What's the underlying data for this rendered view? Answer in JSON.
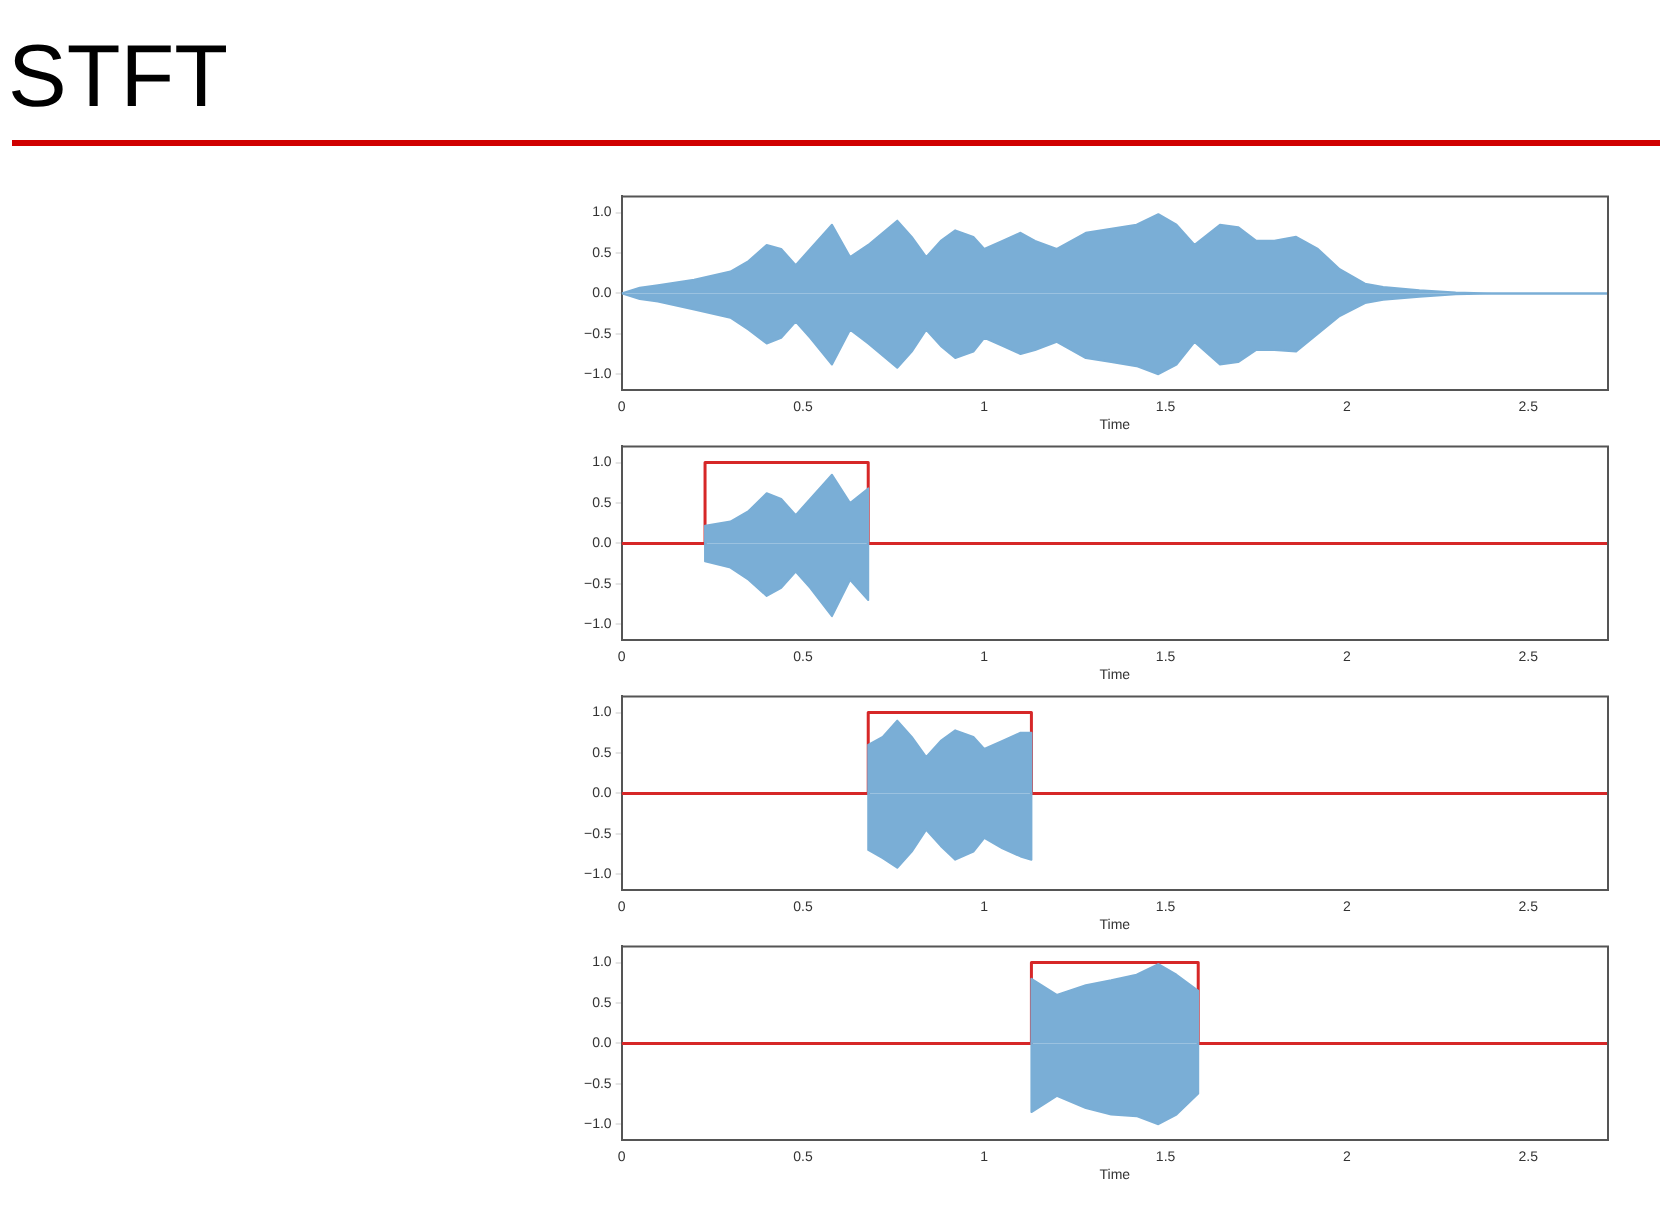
{
  "chart_data": [
    {
      "type": "area",
      "title": "STFT",
      "xlabel": "Time",
      "xlim": [
        0,
        2.72
      ],
      "xticks": [
        0,
        0.5,
        1,
        1.5,
        2,
        2.5
      ],
      "ylim": [
        -1.2,
        1.2
      ],
      "yticks": [
        {
          "value": -1,
          "label": "−1.0"
        },
        {
          "value": -0.5,
          "label": "−0.5"
        },
        {
          "value": 0,
          "label": "0.0"
        },
        {
          "value": 0.5,
          "label": "0.5"
        },
        {
          "value": 1,
          "label": "1.0"
        }
      ],
      "grid": false,
      "legend": false,
      "series": [
        {
          "type": "area",
          "color": "#7aaed6",
          "x": [
            0,
            0.05,
            0.1,
            0.2,
            0.3,
            0.35,
            0.4,
            0.44,
            0.48,
            0.52,
            0.58,
            0.63,
            0.68,
            0.76,
            0.8,
            0.84,
            0.88,
            0.92,
            0.97,
            1.0,
            1.05,
            1.1,
            1.14,
            1.2,
            1.28,
            1.35,
            1.42,
            1.48,
            1.53,
            1.58,
            1.65,
            1.7,
            1.75,
            1.8,
            1.86,
            1.92,
            1.98,
            2.05,
            2.1,
            2.2,
            2.3,
            2.4,
            2.72
          ],
          "values": [
            0,
            0.07,
            0.1,
            0.17,
            0.27,
            0.4,
            0.6,
            0.55,
            0.35,
            0.55,
            0.85,
            0.45,
            0.6,
            0.9,
            0.7,
            0.45,
            0.65,
            0.78,
            0.7,
            0.55,
            0.65,
            0.75,
            0.65,
            0.55,
            0.75,
            0.8,
            0.85,
            0.98,
            0.85,
            0.6,
            0.85,
            0.82,
            0.65,
            0.65,
            0.7,
            0.55,
            0.3,
            0.12,
            0.08,
            0.04,
            0.01,
            0,
            0
          ]
        },
        {
          "type": "area",
          "color": "#7aaed6",
          "x": [
            0,
            0.05,
            0.1,
            0.2,
            0.3,
            0.35,
            0.4,
            0.44,
            0.48,
            0.52,
            0.58,
            0.63,
            0.68,
            0.76,
            0.8,
            0.84,
            0.88,
            0.92,
            0.97,
            1.0,
            1.05,
            1.1,
            1.14,
            1.2,
            1.28,
            1.35,
            1.42,
            1.48,
            1.53,
            1.58,
            1.65,
            1.7,
            1.75,
            1.8,
            1.86,
            1.92,
            1.98,
            2.05,
            2.1,
            2.2,
            2.3,
            2.4,
            2.72
          ],
          "values": [
            0,
            -0.07,
            -0.1,
            -0.2,
            -0.3,
            -0.45,
            -0.62,
            -0.55,
            -0.35,
            -0.55,
            -0.88,
            -0.45,
            -0.62,
            -0.92,
            -0.72,
            -0.45,
            -0.65,
            -0.8,
            -0.72,
            -0.55,
            -0.65,
            -0.75,
            -0.7,
            -0.6,
            -0.8,
            -0.85,
            -0.9,
            -1.0,
            -0.88,
            -0.6,
            -0.88,
            -0.85,
            -0.7,
            -0.7,
            -0.72,
            -0.5,
            -0.28,
            -0.12,
            -0.08,
            -0.04,
            -0.01,
            0,
            0
          ]
        }
      ]
    },
    {
      "type": "area",
      "xlabel": "Time",
      "xlim": [
        0,
        2.72
      ],
      "xticks": [
        0,
        0.5,
        1,
        1.5,
        2,
        2.5
      ],
      "ylim": [
        -1.2,
        1.2
      ],
      "yticks": [
        {
          "value": -1,
          "label": "−1.0"
        },
        {
          "value": -0.5,
          "label": "−0.5"
        },
        {
          "value": 0,
          "label": "0.0"
        },
        {
          "value": 0.5,
          "label": "0.5"
        },
        {
          "value": 1,
          "label": "1.0"
        }
      ],
      "grid": false,
      "legend": false,
      "series": [
        {
          "type": "area",
          "color": "#7aaed6",
          "x": [
            0.23,
            0.23,
            0.3,
            0.35,
            0.4,
            0.44,
            0.48,
            0.52,
            0.58,
            0.63,
            0.68,
            0.68
          ],
          "values": [
            0,
            0.22,
            0.27,
            0.4,
            0.62,
            0.55,
            0.35,
            0.55,
            0.85,
            0.5,
            0.68,
            0
          ]
        },
        {
          "type": "area",
          "color": "#7aaed6",
          "x": [
            0.23,
            0.23,
            0.3,
            0.35,
            0.4,
            0.44,
            0.48,
            0.52,
            0.58,
            0.63,
            0.68,
            0.68
          ],
          "values": [
            0,
            -0.22,
            -0.3,
            -0.45,
            -0.65,
            -0.55,
            -0.35,
            -0.55,
            -0.9,
            -0.45,
            -0.7,
            0
          ]
        },
        {
          "type": "line",
          "color": "#d62728",
          "x": [
            0,
            0.23,
            0.23,
            0.68,
            0.68,
            2.72
          ],
          "values": [
            0,
            0,
            1,
            1,
            0,
            0
          ]
        }
      ]
    },
    {
      "type": "area",
      "xlabel": "Time",
      "xlim": [
        0,
        2.72
      ],
      "xticks": [
        0,
        0.5,
        1,
        1.5,
        2,
        2.5
      ],
      "ylim": [
        -1.2,
        1.2
      ],
      "yticks": [
        {
          "value": -1,
          "label": "−1.0"
        },
        {
          "value": -0.5,
          "label": "−0.5"
        },
        {
          "value": 0,
          "label": "0.0"
        },
        {
          "value": 0.5,
          "label": "0.5"
        },
        {
          "value": 1,
          "label": "1.0"
        }
      ],
      "grid": false,
      "legend": false,
      "series": [
        {
          "type": "area",
          "color": "#7aaed6",
          "x": [
            0.68,
            0.68,
            0.72,
            0.76,
            0.8,
            0.84,
            0.88,
            0.92,
            0.97,
            1.0,
            1.05,
            1.1,
            1.13,
            1.13
          ],
          "values": [
            0,
            0.6,
            0.7,
            0.9,
            0.7,
            0.45,
            0.65,
            0.78,
            0.7,
            0.55,
            0.65,
            0.75,
            0.75,
            0
          ]
        },
        {
          "type": "area",
          "color": "#7aaed6",
          "x": [
            0.68,
            0.68,
            0.72,
            0.76,
            0.8,
            0.84,
            0.88,
            0.92,
            0.97,
            1.0,
            1.05,
            1.1,
            1.13,
            1.13
          ],
          "values": [
            0,
            -0.7,
            -0.8,
            -0.92,
            -0.72,
            -0.45,
            -0.65,
            -0.82,
            -0.72,
            -0.55,
            -0.68,
            -0.78,
            -0.82,
            0
          ]
        },
        {
          "type": "line",
          "color": "#d62728",
          "x": [
            0,
            0.68,
            0.68,
            1.13,
            1.13,
            2.72
          ],
          "values": [
            0,
            0,
            1,
            1,
            0,
            0
          ]
        }
      ]
    },
    {
      "type": "area",
      "xlabel": "Time",
      "xlim": [
        0,
        2.72
      ],
      "xticks": [
        0,
        0.5,
        1,
        1.5,
        2,
        2.5
      ],
      "ylim": [
        -1.2,
        1.2
      ],
      "yticks": [
        {
          "value": -1,
          "label": "−1.0"
        },
        {
          "value": -0.5,
          "label": "−0.5"
        },
        {
          "value": 0,
          "label": "0.0"
        },
        {
          "value": 0.5,
          "label": "0.5"
        },
        {
          "value": 1,
          "label": "1.0"
        }
      ],
      "grid": false,
      "legend": false,
      "series": [
        {
          "type": "area",
          "color": "#7aaed6",
          "x": [
            1.13,
            1.13,
            1.2,
            1.28,
            1.35,
            1.42,
            1.48,
            1.53,
            1.59,
            1.59
          ],
          "values": [
            0,
            0.8,
            0.6,
            0.72,
            0.78,
            0.85,
            0.98,
            0.85,
            0.65,
            0
          ]
        },
        {
          "type": "area",
          "color": "#7aaed6",
          "x": [
            1.13,
            1.13,
            1.2,
            1.28,
            1.35,
            1.42,
            1.48,
            1.53,
            1.59,
            1.59
          ],
          "values": [
            0,
            -0.85,
            -0.65,
            -0.8,
            -0.88,
            -0.9,
            -1.0,
            -0.88,
            -0.62,
            0
          ]
        },
        {
          "type": "line",
          "color": "#d62728",
          "x": [
            0,
            1.13,
            1.13,
            1.59,
            1.59,
            2.72
          ],
          "values": [
            0,
            0,
            1,
            1,
            0,
            0
          ]
        }
      ]
    }
  ]
}
